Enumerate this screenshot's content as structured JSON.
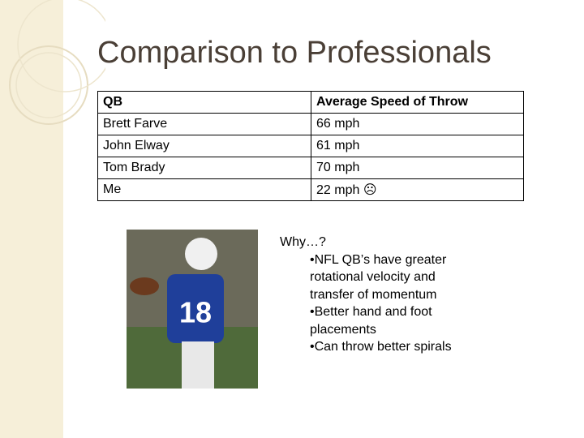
{
  "title": "Comparison to Professionals",
  "table": {
    "header": [
      "QB",
      "Average Speed of Throw"
    ],
    "rows": [
      [
        "Brett Farve",
        "66 mph"
      ],
      [
        "John Elway",
        "61 mph"
      ],
      [
        "Tom Brady",
        "70 mph"
      ],
      [
        "Me",
        "22 mph ☹"
      ]
    ]
  },
  "notes": {
    "heading": "Why…?",
    "bullets": [
      "•NFL QB’s have greater rotational velocity and transfer of momentum",
      "•Better hand and foot placements",
      "•Can throw better spirals"
    ]
  }
}
